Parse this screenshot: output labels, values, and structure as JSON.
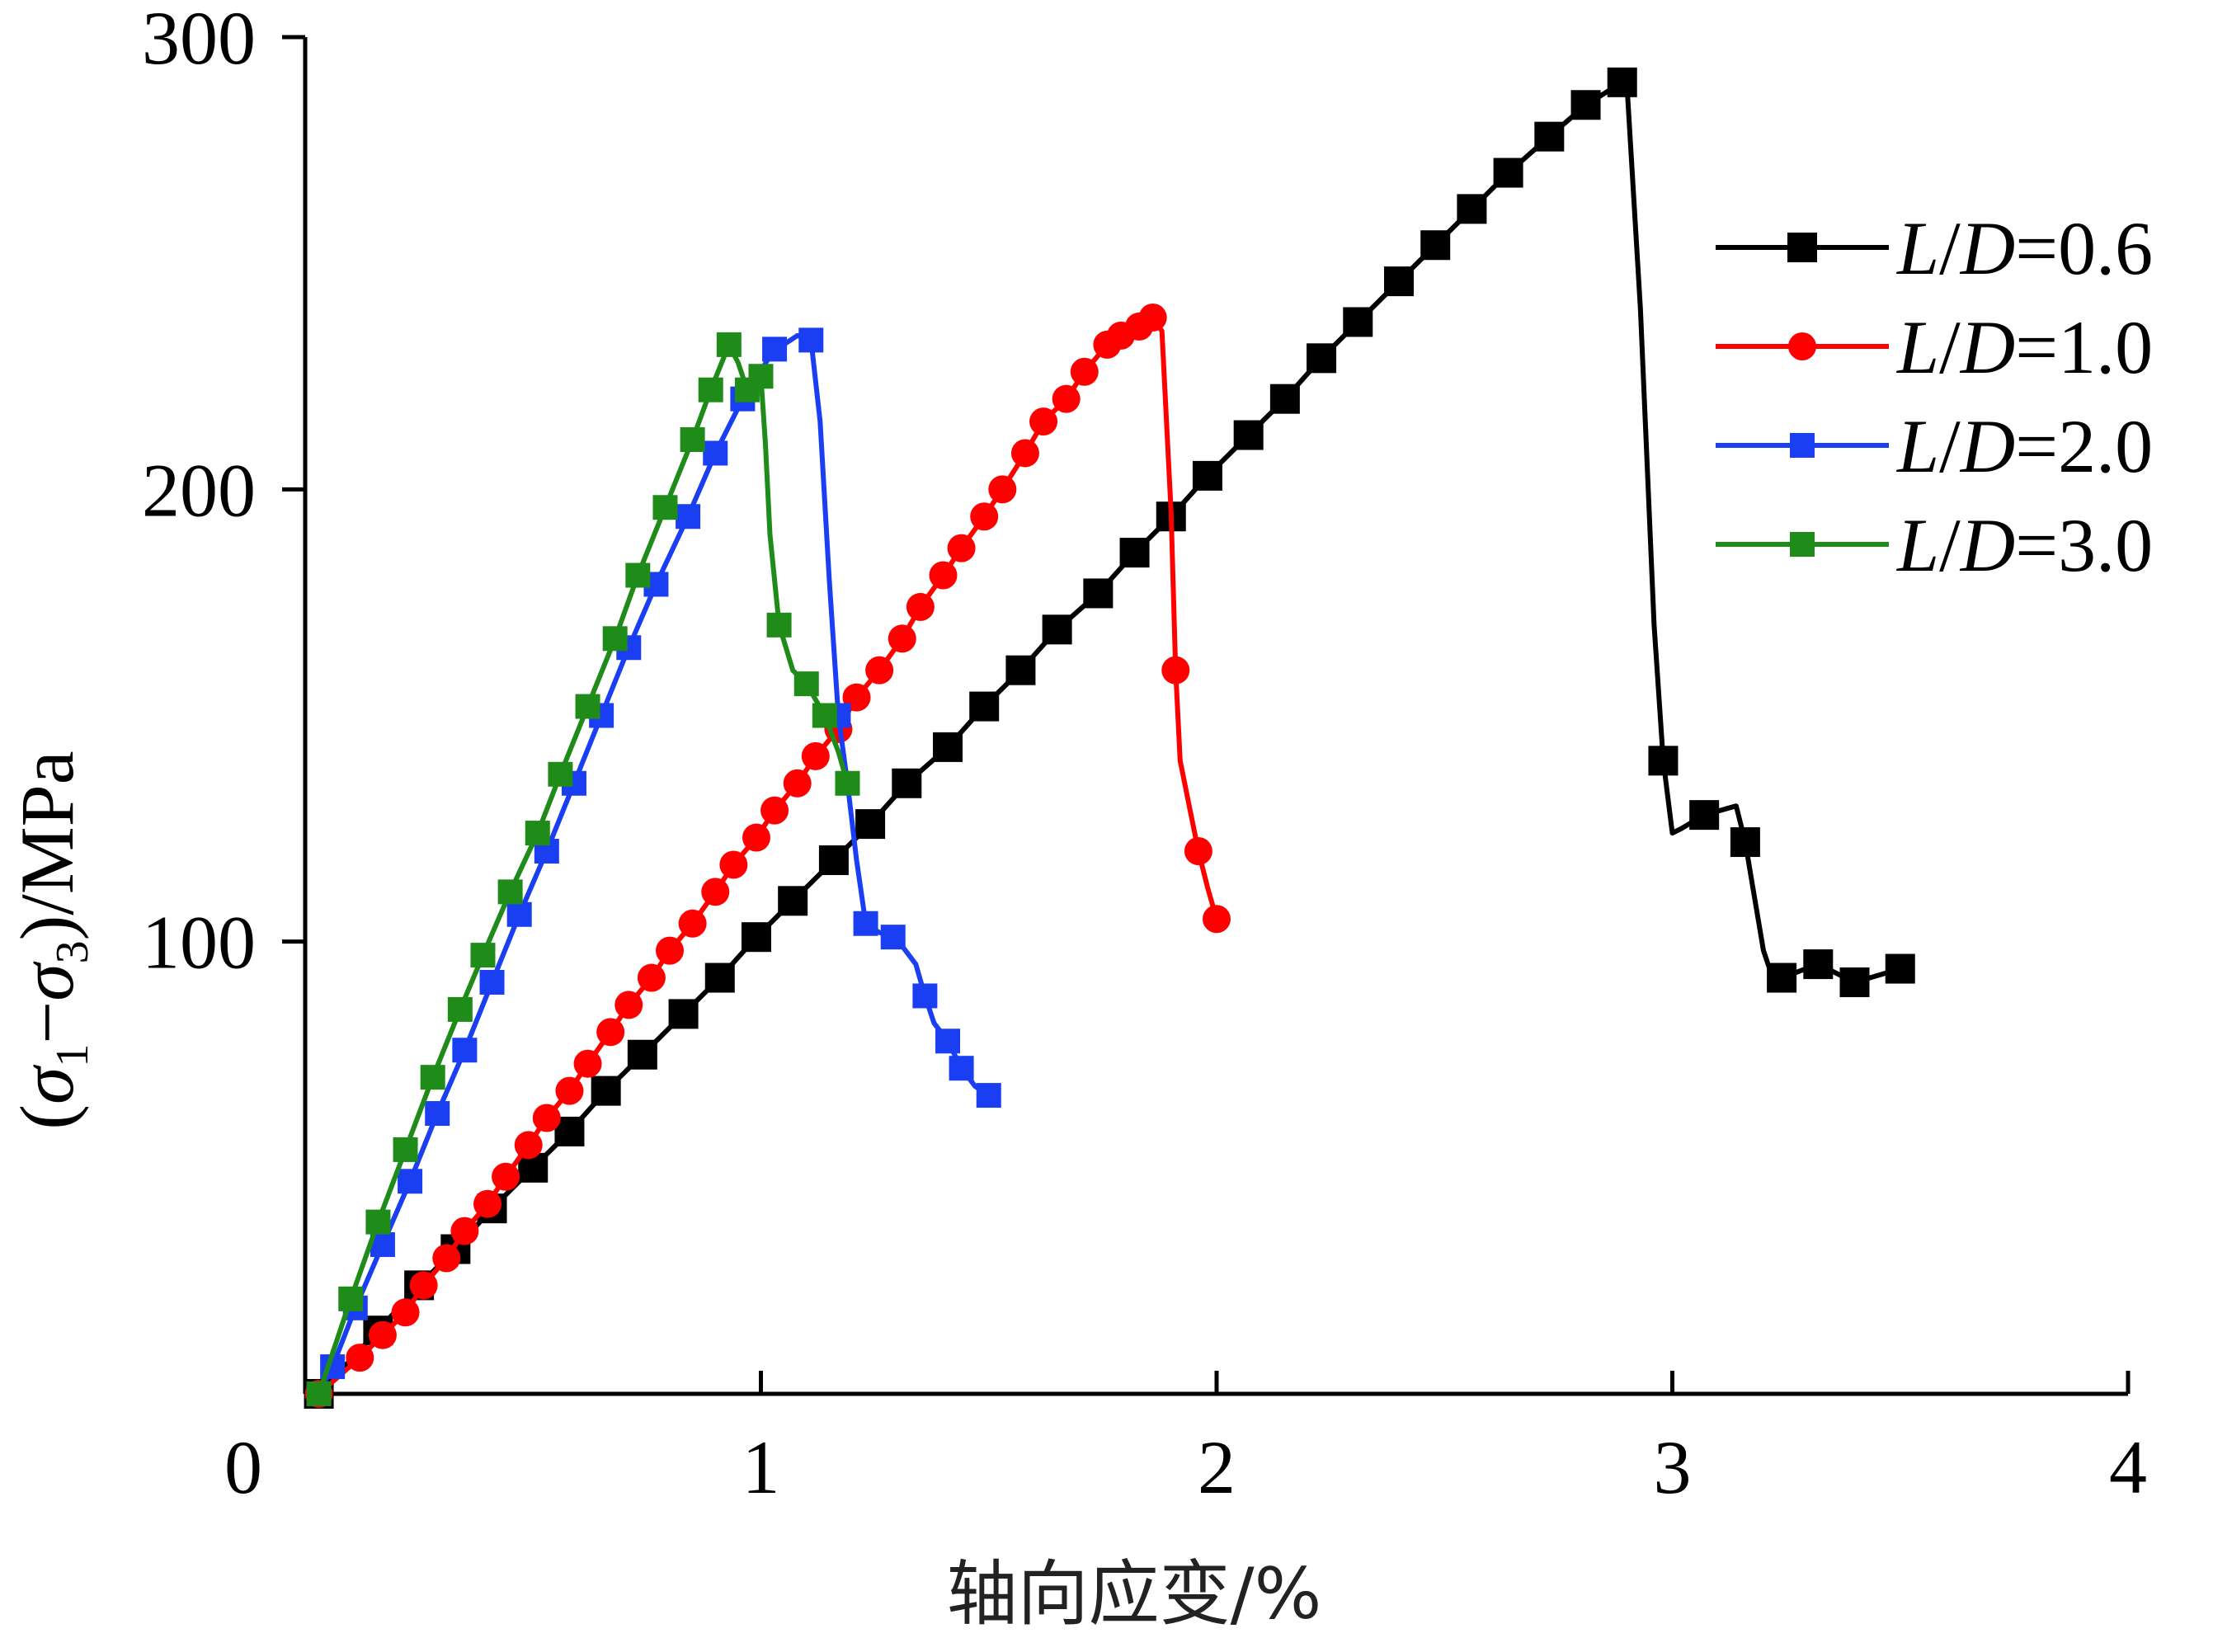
{
  "chart_data": {
    "type": "line",
    "xlabel": "轴向应变/%",
    "ylabel": {
      "open": "(",
      "sigma1": "σ",
      "sub1": "1",
      "dash": "−",
      "sigma3": "σ",
      "sub3": "3",
      "close": ")/MPa"
    },
    "xlim": [
      0,
      4
    ],
    "ylim": [
      0,
      300
    ],
    "xticks": [
      "0",
      "1",
      "2",
      "3",
      "4"
    ],
    "yticks": [
      "100",
      "200",
      "300"
    ],
    "grid": false,
    "legend_position": "top-right",
    "series": [
      {
        "name": "L/D=0.6",
        "legend": {
          "l": "L",
          "slash": "/",
          "d": "D",
          "val": "=0.6"
        },
        "color": "#000000",
        "marker": "square",
        "points": [
          [
            0.03,
            0
          ],
          [
            0.16,
            14
          ],
          [
            0.25,
            24
          ],
          [
            0.33,
            32
          ],
          [
            0.41,
            41
          ],
          [
            0.5,
            50
          ],
          [
            0.58,
            58
          ],
          [
            0.66,
            67
          ],
          [
            0.74,
            75
          ],
          [
            0.83,
            84
          ],
          [
            0.91,
            92
          ],
          [
            0.99,
            101
          ],
          [
            1.07,
            109
          ],
          [
            1.16,
            118
          ],
          [
            1.24,
            126
          ],
          [
            1.32,
            135
          ],
          [
            1.41,
            143
          ],
          [
            1.49,
            152
          ],
          [
            1.57,
            160
          ],
          [
            1.65,
            169
          ],
          [
            1.74,
            177
          ],
          [
            1.82,
            186
          ],
          [
            1.9,
            194
          ],
          [
            1.98,
            203
          ],
          [
            2.07,
            212
          ],
          [
            2.15,
            220
          ],
          [
            2.23,
            229
          ],
          [
            2.31,
            237
          ],
          [
            2.4,
            246
          ],
          [
            2.48,
            254
          ],
          [
            2.56,
            262
          ],
          [
            2.64,
            270
          ],
          [
            2.73,
            278
          ],
          [
            2.81,
            285
          ],
          [
            2.89,
            290
          ],
          [
            2.9,
            290
          ],
          [
            2.93,
            240
          ],
          [
            2.96,
            170
          ],
          [
            2.98,
            140
          ],
          [
            3.0,
            124
          ],
          [
            3.02,
            125
          ],
          [
            3.07,
            128
          ],
          [
            3.14,
            130
          ],
          [
            3.16,
            122
          ],
          [
            3.18,
            110
          ],
          [
            3.2,
            98
          ],
          [
            3.22,
            92
          ],
          [
            3.24,
            92
          ],
          [
            3.32,
            95
          ],
          [
            3.4,
            91
          ],
          [
            3.5,
            94
          ]
        ],
        "markers_at": [
          [
            0.03,
            0
          ],
          [
            0.16,
            14
          ],
          [
            0.25,
            24
          ],
          [
            0.33,
            32
          ],
          [
            0.41,
            41
          ],
          [
            0.5,
            50
          ],
          [
            0.58,
            58
          ],
          [
            0.66,
            67
          ],
          [
            0.74,
            75
          ],
          [
            0.83,
            84
          ],
          [
            0.91,
            92
          ],
          [
            0.99,
            101
          ],
          [
            1.07,
            109
          ],
          [
            1.16,
            118
          ],
          [
            1.24,
            126
          ],
          [
            1.32,
            135
          ],
          [
            1.41,
            143
          ],
          [
            1.49,
            152
          ],
          [
            1.57,
            160
          ],
          [
            1.65,
            169
          ],
          [
            1.74,
            177
          ],
          [
            1.82,
            186
          ],
          [
            1.9,
            194
          ],
          [
            1.98,
            203
          ],
          [
            2.07,
            212
          ],
          [
            2.15,
            220
          ],
          [
            2.23,
            229
          ],
          [
            2.31,
            237
          ],
          [
            2.4,
            246
          ],
          [
            2.48,
            254
          ],
          [
            2.56,
            262
          ],
          [
            2.64,
            270
          ],
          [
            2.73,
            278
          ],
          [
            2.81,
            285
          ],
          [
            2.89,
            290
          ],
          [
            2.98,
            140
          ],
          [
            3.07,
            128
          ],
          [
            3.16,
            122
          ],
          [
            3.24,
            92
          ],
          [
            3.32,
            95
          ],
          [
            3.4,
            91
          ],
          [
            3.5,
            94
          ]
        ]
      },
      {
        "name": "L/D=1.0",
        "legend": {
          "l": "L",
          "slash": "/",
          "d": "D",
          "val": "=1.0"
        },
        "color": "#ff0000",
        "marker": "circle",
        "points": [
          [
            0.03,
            0
          ],
          [
            0.12,
            8
          ],
          [
            0.17,
            13
          ],
          [
            0.22,
            18
          ],
          [
            0.26,
            24
          ],
          [
            0.31,
            30
          ],
          [
            0.35,
            36
          ],
          [
            0.4,
            42
          ],
          [
            0.44,
            48
          ],
          [
            0.49,
            55
          ],
          [
            0.53,
            61
          ],
          [
            0.58,
            67
          ],
          [
            0.62,
            73
          ],
          [
            0.67,
            80
          ],
          [
            0.71,
            86
          ],
          [
            0.76,
            92
          ],
          [
            0.8,
            98
          ],
          [
            0.85,
            104
          ],
          [
            0.9,
            111
          ],
          [
            0.94,
            117
          ],
          [
            0.99,
            123
          ],
          [
            1.03,
            129
          ],
          [
            1.08,
            135
          ],
          [
            1.12,
            141
          ],
          [
            1.17,
            147
          ],
          [
            1.21,
            154
          ],
          [
            1.26,
            160
          ],
          [
            1.31,
            167
          ],
          [
            1.35,
            174
          ],
          [
            1.4,
            181
          ],
          [
            1.44,
            187
          ],
          [
            1.49,
            194
          ],
          [
            1.53,
            200
          ],
          [
            1.58,
            208
          ],
          [
            1.62,
            215
          ],
          [
            1.67,
            220
          ],
          [
            1.71,
            226
          ],
          [
            1.76,
            232
          ],
          [
            1.79,
            234
          ],
          [
            1.83,
            236
          ],
          [
            1.86,
            238
          ],
          [
            1.88,
            235
          ],
          [
            1.9,
            195
          ],
          [
            1.91,
            160
          ],
          [
            1.92,
            140
          ],
          [
            1.94,
            130
          ],
          [
            1.96,
            120
          ],
          [
            1.98,
            112
          ],
          [
            2.0,
            105
          ]
        ],
        "markers_at": [
          [
            0.03,
            0
          ],
          [
            0.12,
            8
          ],
          [
            0.17,
            13
          ],
          [
            0.22,
            18
          ],
          [
            0.26,
            24
          ],
          [
            0.31,
            30
          ],
          [
            0.35,
            36
          ],
          [
            0.4,
            42
          ],
          [
            0.44,
            48
          ],
          [
            0.49,
            55
          ],
          [
            0.53,
            61
          ],
          [
            0.58,
            67
          ],
          [
            0.62,
            73
          ],
          [
            0.67,
            80
          ],
          [
            0.71,
            86
          ],
          [
            0.76,
            92
          ],
          [
            0.8,
            98
          ],
          [
            0.85,
            104
          ],
          [
            0.9,
            111
          ],
          [
            0.94,
            117
          ],
          [
            0.99,
            123
          ],
          [
            1.03,
            129
          ],
          [
            1.08,
            135
          ],
          [
            1.12,
            141
          ],
          [
            1.17,
            147
          ],
          [
            1.21,
            154
          ],
          [
            1.26,
            160
          ],
          [
            1.31,
            167
          ],
          [
            1.35,
            174
          ],
          [
            1.4,
            181
          ],
          [
            1.44,
            187
          ],
          [
            1.49,
            194
          ],
          [
            1.53,
            200
          ],
          [
            1.58,
            208
          ],
          [
            1.62,
            215
          ],
          [
            1.67,
            220
          ],
          [
            1.71,
            226
          ],
          [
            1.76,
            232
          ],
          [
            1.79,
            234
          ],
          [
            1.83,
            236
          ],
          [
            1.86,
            238
          ],
          [
            1.91,
            160
          ],
          [
            1.96,
            120
          ],
          [
            2.0,
            105
          ]
        ]
      },
      {
        "name": "L/D=2.0",
        "legend": {
          "l": "L",
          "slash": "/",
          "d": "D",
          "val": "=2.0"
        },
        "color": "#1a3ff2",
        "marker": "square",
        "points": [
          [
            0.03,
            0
          ],
          [
            0.06,
            6
          ],
          [
            0.11,
            19
          ],
          [
            0.17,
            33
          ],
          [
            0.23,
            47
          ],
          [
            0.29,
            62
          ],
          [
            0.35,
            76
          ],
          [
            0.41,
            91
          ],
          [
            0.47,
            106
          ],
          [
            0.53,
            120
          ],
          [
            0.59,
            135
          ],
          [
            0.65,
            150
          ],
          [
            0.71,
            165
          ],
          [
            0.77,
            179
          ],
          [
            0.84,
            194
          ],
          [
            0.9,
            208
          ],
          [
            0.96,
            220
          ],
          [
            1.03,
            231
          ],
          [
            1.05,
            232
          ],
          [
            1.08,
            234
          ],
          [
            1.11,
            233
          ],
          [
            1.13,
            215
          ],
          [
            1.15,
            180
          ],
          [
            1.17,
            150
          ],
          [
            1.19,
            135
          ],
          [
            1.21,
            118
          ],
          [
            1.23,
            104
          ],
          [
            1.26,
            102
          ],
          [
            1.29,
            101
          ],
          [
            1.31,
            99
          ],
          [
            1.34,
            95
          ],
          [
            1.36,
            88
          ],
          [
            1.38,
            82
          ],
          [
            1.41,
            78
          ],
          [
            1.44,
            72
          ],
          [
            1.47,
            68
          ],
          [
            1.5,
            66
          ]
        ],
        "markers_at": [
          [
            0.03,
            0
          ],
          [
            0.06,
            6
          ],
          [
            0.11,
            19
          ],
          [
            0.17,
            33
          ],
          [
            0.23,
            47
          ],
          [
            0.29,
            62
          ],
          [
            0.35,
            76
          ],
          [
            0.41,
            91
          ],
          [
            0.47,
            106
          ],
          [
            0.53,
            120
          ],
          [
            0.59,
            135
          ],
          [
            0.65,
            150
          ],
          [
            0.71,
            165
          ],
          [
            0.77,
            179
          ],
          [
            0.84,
            194
          ],
          [
            0.9,
            208
          ],
          [
            0.96,
            220
          ],
          [
            1.03,
            231
          ],
          [
            1.11,
            233
          ],
          [
            1.17,
            150
          ],
          [
            1.23,
            104
          ],
          [
            1.29,
            101
          ],
          [
            1.36,
            88
          ],
          [
            1.41,
            78
          ],
          [
            1.44,
            72
          ],
          [
            1.5,
            66
          ]
        ]
      },
      {
        "name": "L/D=3.0",
        "legend": {
          "l": "L",
          "slash": "/",
          "d": "D",
          "val": "=3.0"
        },
        "color": "#1f8c1a",
        "marker": "square",
        "points": [
          [
            0.03,
            0
          ],
          [
            0.1,
            21
          ],
          [
            0.16,
            38
          ],
          [
            0.22,
            54
          ],
          [
            0.28,
            70
          ],
          [
            0.34,
            85
          ],
          [
            0.39,
            97
          ],
          [
            0.45,
            111
          ],
          [
            0.51,
            124
          ],
          [
            0.56,
            137
          ],
          [
            0.62,
            152
          ],
          [
            0.68,
            167
          ],
          [
            0.73,
            181
          ],
          [
            0.79,
            196
          ],
          [
            0.85,
            211
          ],
          [
            0.89,
            222
          ],
          [
            0.93,
            232
          ],
          [
            0.95,
            228
          ],
          [
            0.97,
            222
          ],
          [
            1.0,
            225
          ],
          [
            1.01,
            210
          ],
          [
            1.02,
            190
          ],
          [
            1.04,
            170
          ],
          [
            1.07,
            160
          ],
          [
            1.1,
            157
          ],
          [
            1.14,
            150
          ],
          [
            1.17,
            142
          ],
          [
            1.19,
            135
          ]
        ],
        "markers_at": [
          [
            0.03,
            0
          ],
          [
            0.1,
            21
          ],
          [
            0.16,
            38
          ],
          [
            0.22,
            54
          ],
          [
            0.28,
            70
          ],
          [
            0.34,
            85
          ],
          [
            0.39,
            97
          ],
          [
            0.45,
            111
          ],
          [
            0.51,
            124
          ],
          [
            0.56,
            137
          ],
          [
            0.62,
            152
          ],
          [
            0.68,
            167
          ],
          [
            0.73,
            181
          ],
          [
            0.79,
            196
          ],
          [
            0.85,
            211
          ],
          [
            0.89,
            222
          ],
          [
            0.93,
            232
          ],
          [
            0.97,
            222
          ],
          [
            1.0,
            225
          ],
          [
            1.04,
            170
          ],
          [
            1.1,
            157
          ],
          [
            1.14,
            150
          ],
          [
            1.19,
            135
          ]
        ]
      }
    ]
  }
}
